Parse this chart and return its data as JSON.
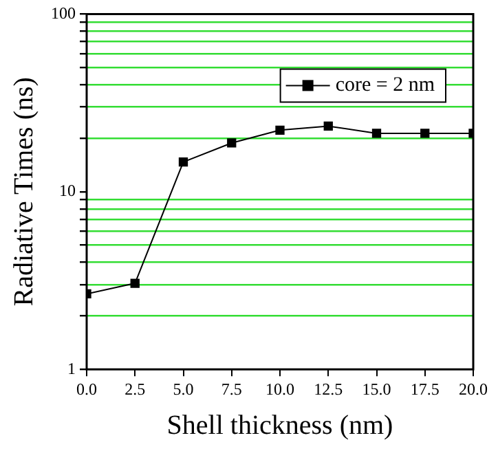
{
  "chart_data": {
    "type": "line",
    "xlabel": "Shell thickness (nm)",
    "ylabel": "Radiative Times (ns)",
    "x": [
      0,
      2.5,
      5,
      7.5,
      10,
      12.5,
      15,
      17.5,
      20
    ],
    "series": [
      {
        "name": "core = 2 nm",
        "color": "#000000",
        "values": [
          2.66,
          3.05,
          14.7,
          18.8,
          22.2,
          23.4,
          21.3,
          21.3,
          21.3
        ]
      }
    ],
    "xlim": [
      0,
      20
    ],
    "xticks": [
      {
        "value": 0,
        "label": "0.0"
      },
      {
        "value": 2.5,
        "label": "2.5"
      },
      {
        "value": 5,
        "label": "5.0"
      },
      {
        "value": 7.5,
        "label": "7.5"
      },
      {
        "value": 10,
        "label": "10.0"
      },
      {
        "value": 12.5,
        "label": "12.5"
      },
      {
        "value": 15,
        "label": "15.0"
      },
      {
        "value": 17.5,
        "label": "17.5"
      },
      {
        "value": 20,
        "label": "20.0"
      }
    ],
    "ylim": [
      1,
      100
    ],
    "yticks": [
      1,
      {
        "value": 2,
        "label": null
      },
      {
        "value": 3,
        "label": null
      },
      {
        "value": 4,
        "label": null
      },
      {
        "value": 5,
        "label": null
      },
      {
        "value": 6,
        "label": null
      },
      {
        "value": 7,
        "label": null
      },
      {
        "value": 8,
        "label": null
      },
      {
        "value": 9,
        "label": null
      },
      10,
      {
        "value": 20,
        "label": null
      },
      {
        "value": 30,
        "label": null
      },
      {
        "value": 40,
        "label": null
      },
      {
        "value": 50,
        "label": null
      },
      {
        "value": 60,
        "label": null
      },
      {
        "value": 70,
        "label": null
      },
      {
        "value": 80,
        "label": null
      },
      {
        "value": 90,
        "label": null
      },
      100
    ],
    "log": true,
    "grid": "y",
    "legend": "top right",
    "marker": "square",
    "line_style": "solid"
  }
}
